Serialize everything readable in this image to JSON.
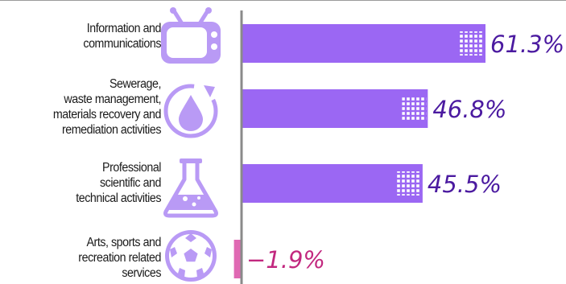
{
  "chart_data": {
    "type": "bar",
    "orientation": "horizontal",
    "categories": [
      "Information and\ncommunications",
      "Sewerage,\nwaste management,\nmaterials recovery and\nremediation activities",
      "Professional\nscientific and\ntechnical activities",
      "Arts, sports and\nrecreation related\nservices"
    ],
    "values": [
      61.3,
      46.8,
      45.5,
      -1.9
    ],
    "value_labels": [
      "61.3%",
      "46.8%",
      "45.5%",
      "−1.9%"
    ],
    "icons": [
      "tv-icon",
      "water-drop-recycle-icon",
      "lab-flask-icon",
      "soccer-ball-icon"
    ],
    "colors": {
      "positive_bar": "#9b67f3",
      "negative_bar": "#e069b3",
      "positive_label": "#4b1aa0",
      "negative_label": "#c2287f",
      "icon": "#b99af5",
      "axis": "#8a8a8a"
    },
    "xlim": [
      -2.5,
      66
    ]
  }
}
